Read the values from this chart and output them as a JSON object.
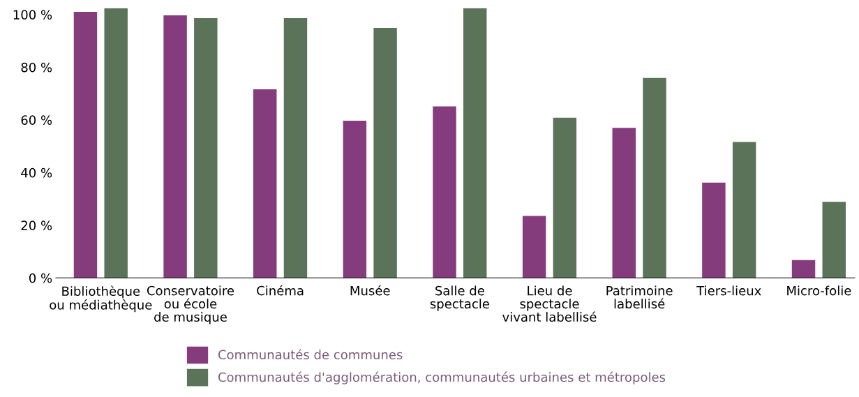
{
  "chart_data": {
    "type": "bar",
    "categories": [
      "Bibliothèque\nou médiathèque",
      "Conservatoire\nou école\nde musique",
      "Cinéma",
      "Musée",
      "Salle de\nspectacle",
      "Lieu de\nspectacle\nvivant labellisé",
      "Patrimoine\nlabellisé",
      "Tiers-lieux",
      "Micro-folie"
    ],
    "series": [
      {
        "name": "Communautés de communes",
        "color": "#843c7c",
        "values": [
          101,
          99.7,
          71.6,
          59.7,
          65.1,
          23.5,
          57,
          36.2,
          6.8
        ]
      },
      {
        "name": "Communautés d'agglomération, communautés urbaines et métropoles",
        "color": "#5b7359",
        "values": [
          102.4,
          98.6,
          98.6,
          94.9,
          102.4,
          60.8,
          75.9,
          51.6,
          28.9
        ]
      }
    ],
    "ylim": [
      0,
      102.5
    ],
    "yticks": [
      {
        "value": 0,
        "label": "0 %"
      },
      {
        "value": 20,
        "label": "20 %"
      },
      {
        "value": 40,
        "label": "40 %"
      },
      {
        "value": 60,
        "label": "60 %"
      },
      {
        "value": 80,
        "label": "80 %"
      },
      {
        "value": 100,
        "label": "100 %"
      }
    ],
    "grid": false,
    "legend": "bottom"
  }
}
